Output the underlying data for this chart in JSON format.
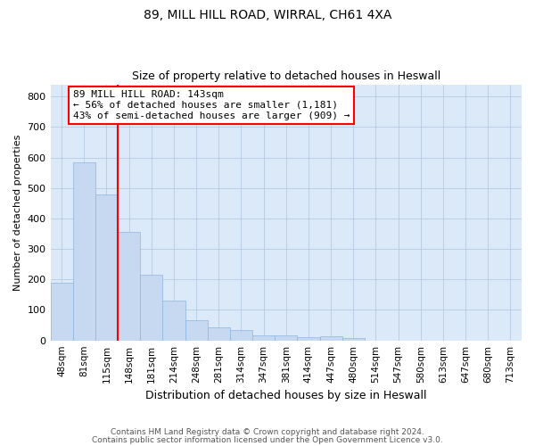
{
  "title1": "89, MILL HILL ROAD, WIRRAL, CH61 4XA",
  "title2": "Size of property relative to detached houses in Heswall",
  "xlabel": "Distribution of detached houses by size in Heswall",
  "ylabel": "Number of detached properties",
  "bins": [
    "48sqm",
    "81sqm",
    "115sqm",
    "148sqm",
    "181sqm",
    "214sqm",
    "248sqm",
    "281sqm",
    "314sqm",
    "347sqm",
    "381sqm",
    "414sqm",
    "447sqm",
    "480sqm",
    "514sqm",
    "547sqm",
    "580sqm",
    "613sqm",
    "647sqm",
    "680sqm",
    "713sqm"
  ],
  "values": [
    190,
    585,
    480,
    355,
    215,
    132,
    65,
    42,
    35,
    18,
    17,
    10,
    13,
    8,
    0,
    0,
    0,
    0,
    0,
    0,
    0
  ],
  "bar_color": "#c6d9f0",
  "bar_edge_color": "#8db4e2",
  "annotation_text": "89 MILL HILL ROAD: 143sqm\n← 56% of detached houses are smaller (1,181)\n43% of semi-detached houses are larger (909) →",
  "footer1": "Contains HM Land Registry data © Crown copyright and database right 2024.",
  "footer2": "Contains public sector information licensed under the Open Government Licence v3.0.",
  "ylim": [
    0,
    840
  ],
  "yticks": [
    0,
    100,
    200,
    300,
    400,
    500,
    600,
    700,
    800
  ],
  "grid_color": "#b0c4de",
  "background_color": "#dce9f8"
}
